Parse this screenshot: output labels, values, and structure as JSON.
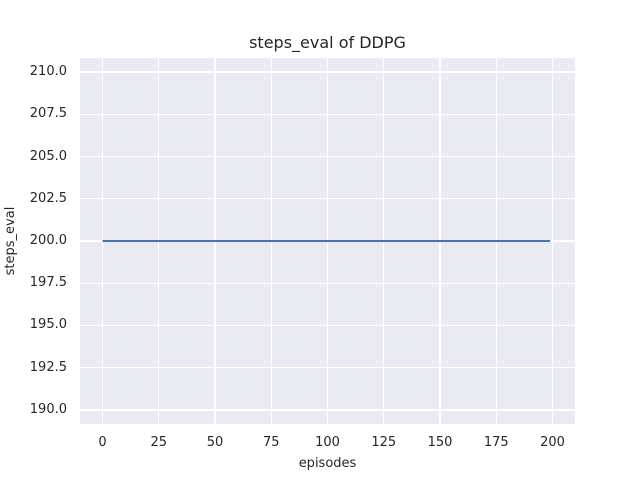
{
  "chart_data": {
    "type": "line",
    "title": "steps_eval of DDPG",
    "xlabel": "episodes",
    "ylabel": "steps_eval",
    "xlim": [
      -10,
      210
    ],
    "ylim": [
      189.17,
      210.83
    ],
    "grid": true,
    "legend": null,
    "plot_bg_color": "#eaeaf2",
    "grid_color": "#ffffff",
    "text_color": "#262626",
    "xticks": {
      "values": [
        0,
        25,
        50,
        75,
        100,
        125,
        150,
        175,
        200
      ],
      "labels": [
        "0",
        "25",
        "50",
        "75",
        "100",
        "125",
        "150",
        "175",
        "200"
      ]
    },
    "yticks": {
      "values": [
        190.0,
        192.5,
        195.0,
        197.5,
        200.0,
        202.5,
        205.0,
        207.5,
        210.0
      ],
      "labels": [
        "190.0",
        "192.5",
        "195.0",
        "197.5",
        "200.0",
        "202.5",
        "205.0",
        "207.5",
        "210.0"
      ]
    },
    "series": [
      {
        "name": "steps_eval",
        "color": "#4c72b0",
        "line_width": 2,
        "points": [
          [
            0,
            200
          ],
          [
            199,
            200
          ]
        ]
      }
    ]
  }
}
